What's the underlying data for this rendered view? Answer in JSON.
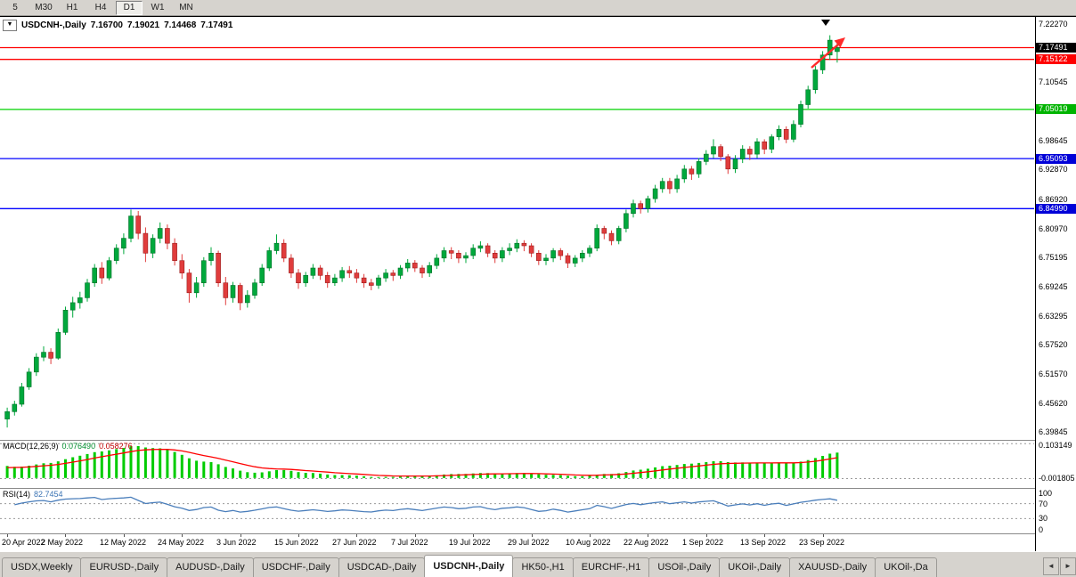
{
  "toolbar": {
    "timeframes": [
      "5",
      "M30",
      "H1",
      "H4",
      "D1",
      "W1",
      "MN"
    ],
    "active_timeframe": "D1"
  },
  "chart": {
    "symbol_title": "USDCNH-,Daily",
    "dropdown_icon": "▼",
    "ohlc": {
      "open": "7.16700",
      "high": "7.19021",
      "low": "7.14468",
      "close": "7.17491"
    }
  },
  "chart_data": {
    "type": "candlestick",
    "title": "USDCNH-,Daily",
    "symbol": "USDCNH-",
    "timeframe": "Daily",
    "current_bar": {
      "open": 7.167,
      "high": 7.19021,
      "low": 7.14468,
      "close": 7.17491
    },
    "ylim": [
      6.383,
      7.237
    ],
    "y_ticks": [
      7.2227,
      7.10545,
      6.98645,
      6.9287,
      6.8692,
      6.8097,
      6.75195,
      6.69245,
      6.63295,
      6.5752,
      6.5157,
      6.4562,
      6.39845
    ],
    "x_ticks": [
      {
        "index": 0,
        "label": "20 Apr 2022"
      },
      {
        "index": 8,
        "label": "2 May 2022"
      },
      {
        "index": 16,
        "label": "12 May 2022"
      },
      {
        "index": 24,
        "label": "24 May 2022"
      },
      {
        "index": 32,
        "label": "3 Jun 2022"
      },
      {
        "index": 40,
        "label": "15 Jun 2022"
      },
      {
        "index": 48,
        "label": "27 Jun 2022"
      },
      {
        "index": 56,
        "label": "7 Jul 2022"
      },
      {
        "index": 64,
        "label": "19 Jul 2022"
      },
      {
        "index": 72,
        "label": "29 Jul 2022"
      },
      {
        "index": 80,
        "label": "10 Aug 2022"
      },
      {
        "index": 88,
        "label": "22 Aug 2022"
      },
      {
        "index": 96,
        "label": "1 Sep 2022"
      },
      {
        "index": 104,
        "label": "13 Sep 2022"
      },
      {
        "index": 112,
        "label": "23 Sep 2022"
      }
    ],
    "hlines": [
      {
        "price": 7.17491,
        "color": "#ff0000"
      },
      {
        "price": 7.15122,
        "color": "#ff0000"
      },
      {
        "price": 7.05019,
        "color": "#00d200"
      },
      {
        "price": 6.95093,
        "color": "#0000ff"
      },
      {
        "price": 6.8499,
        "color": "#0000ff"
      }
    ],
    "price_tags": [
      {
        "price": 7.17491,
        "label": "7.17491",
        "bg": "#000000"
      },
      {
        "price": 7.15122,
        "label": "7.15122",
        "bg": "#ff0000"
      },
      {
        "price": 7.05019,
        "label": "7.05019",
        "bg": "#00b400"
      },
      {
        "price": 6.95093,
        "label": "6.95093",
        "bg": "#0000d8"
      },
      {
        "price": 6.8499,
        "label": "6.84990",
        "bg": "#0000d8"
      }
    ],
    "colors": {
      "up": "#00a83c",
      "down": "#e03c3c",
      "up_edge": "#007028",
      "down_edge": "#9c1c1c",
      "macd_hist": "#00cc00",
      "macd_signal": "#ff0000",
      "rsi_line": "#4a7ebb",
      "arrow": "#ff2a2a"
    },
    "macd": {
      "label": "MACD(12,26,9)",
      "params": [
        12,
        26,
        9
      ],
      "value_main": "0.076490",
      "value_signal": "0.058276",
      "scale_max": "0.103149",
      "scale_min": "-0.001805"
    },
    "rsi": {
      "label": "RSI(14)",
      "period": 14,
      "value": "82.7454",
      "levels": [
        100,
        70,
        30,
        0
      ],
      "level_lines": [
        70,
        30
      ]
    },
    "candles": [
      [
        6.425,
        6.448,
        6.408,
        6.44
      ],
      [
        6.44,
        6.462,
        6.432,
        6.455
      ],
      [
        6.455,
        6.498,
        6.45,
        6.49
      ],
      [
        6.49,
        6.528,
        6.484,
        6.52
      ],
      [
        6.52,
        6.558,
        6.512,
        6.55
      ],
      [
        6.55,
        6.572,
        6.542,
        6.56
      ],
      [
        6.56,
        6.568,
        6.536,
        6.548
      ],
      [
        6.548,
        6.608,
        6.545,
        6.6
      ],
      [
        6.6,
        6.652,
        6.595,
        6.645
      ],
      [
        6.645,
        6.672,
        6.63,
        6.66
      ],
      [
        6.66,
        6.682,
        6.648,
        6.67
      ],
      [
        6.67,
        6.708,
        6.662,
        6.7
      ],
      [
        6.7,
        6.738,
        6.692,
        6.73
      ],
      [
        6.73,
        6.742,
        6.698,
        6.71
      ],
      [
        6.71,
        6.752,
        6.705,
        6.745
      ],
      [
        6.745,
        6.778,
        6.738,
        6.77
      ],
      [
        6.77,
        6.8,
        6.758,
        6.79
      ],
      [
        6.79,
        6.848,
        6.782,
        6.835
      ],
      [
        6.835,
        6.845,
        6.788,
        6.8
      ],
      [
        6.8,
        6.812,
        6.742,
        6.76
      ],
      [
        6.76,
        6.798,
        6.75,
        6.79
      ],
      [
        6.79,
        6.822,
        6.78,
        6.81
      ],
      [
        6.81,
        6.818,
        6.768,
        6.78
      ],
      [
        6.78,
        6.79,
        6.735,
        6.745
      ],
      [
        6.745,
        6.758,
        6.708,
        6.72
      ],
      [
        6.72,
        6.728,
        6.66,
        6.68
      ],
      [
        6.68,
        6.712,
        6.67,
        6.7
      ],
      [
        6.7,
        6.752,
        6.692,
        6.745
      ],
      [
        6.745,
        6.772,
        6.735,
        6.76
      ],
      [
        6.76,
        6.765,
        6.692,
        6.7
      ],
      [
        6.7,
        6.712,
        6.655,
        6.67
      ],
      [
        6.67,
        6.702,
        6.66,
        6.695
      ],
      [
        6.695,
        6.7,
        6.645,
        6.66
      ],
      [
        6.66,
        6.685,
        6.65,
        6.675
      ],
      [
        6.675,
        6.708,
        6.668,
        6.7
      ],
      [
        6.7,
        6.738,
        6.694,
        6.73
      ],
      [
        6.73,
        6.772,
        6.724,
        6.765
      ],
      [
        6.765,
        6.798,
        6.758,
        6.78
      ],
      [
        6.78,
        6.788,
        6.742,
        6.75
      ],
      [
        6.75,
        6.758,
        6.71,
        6.72
      ],
      [
        6.72,
        6.728,
        6.688,
        6.7
      ],
      [
        6.7,
        6.722,
        6.692,
        6.715
      ],
      [
        6.715,
        6.738,
        6.708,
        6.73
      ],
      [
        6.73,
        6.736,
        6.706,
        6.715
      ],
      [
        6.715,
        6.722,
        6.69,
        6.7
      ],
      [
        6.7,
        6.718,
        6.694,
        6.71
      ],
      [
        6.71,
        6.732,
        6.702,
        6.725
      ],
      [
        6.725,
        6.734,
        6.71,
        6.72
      ],
      [
        6.72,
        6.728,
        6.7,
        6.71
      ],
      [
        6.71,
        6.718,
        6.69,
        6.7
      ],
      [
        6.7,
        6.708,
        6.685,
        6.695
      ],
      [
        6.695,
        6.716,
        6.688,
        6.71
      ],
      [
        6.71,
        6.728,
        6.702,
        6.72
      ],
      [
        6.72,
        6.726,
        6.704,
        6.715
      ],
      [
        6.715,
        6.736,
        6.708,
        6.73
      ],
      [
        6.73,
        6.748,
        6.722,
        6.74
      ],
      [
        6.74,
        6.746,
        6.722,
        6.73
      ],
      [
        6.73,
        6.736,
        6.71,
        6.72
      ],
      [
        6.72,
        6.742,
        6.712,
        6.735
      ],
      [
        6.735,
        6.758,
        6.728,
        6.75
      ],
      [
        6.75,
        6.772,
        6.742,
        6.765
      ],
      [
        6.765,
        6.772,
        6.748,
        6.76
      ],
      [
        6.76,
        6.766,
        6.74,
        6.75
      ],
      [
        6.75,
        6.762,
        6.74,
        6.755
      ],
      [
        6.755,
        6.778,
        6.748,
        6.77
      ],
      [
        6.77,
        6.784,
        6.762,
        6.775
      ],
      [
        6.775,
        6.78,
        6.752,
        6.76
      ],
      [
        6.76,
        6.766,
        6.74,
        6.75
      ],
      [
        6.75,
        6.772,
        6.742,
        6.765
      ],
      [
        6.765,
        6.78,
        6.756,
        6.77
      ],
      [
        6.77,
        6.788,
        6.762,
        6.78
      ],
      [
        6.78,
        6.786,
        6.764,
        6.775
      ],
      [
        6.775,
        6.78,
        6.752,
        6.76
      ],
      [
        6.76,
        6.766,
        6.736,
        6.745
      ],
      [
        6.745,
        6.758,
        6.736,
        6.75
      ],
      [
        6.75,
        6.77,
        6.742,
        6.765
      ],
      [
        6.765,
        6.77,
        6.746,
        6.755
      ],
      [
        6.755,
        6.76,
        6.73,
        6.74
      ],
      [
        6.74,
        6.756,
        6.732,
        6.75
      ],
      [
        6.75,
        6.766,
        6.742,
        6.76
      ],
      [
        6.76,
        6.776,
        6.752,
        6.77
      ],
      [
        6.77,
        6.818,
        6.764,
        6.81
      ],
      [
        6.81,
        6.815,
        6.788,
        6.8
      ],
      [
        6.8,
        6.806,
        6.776,
        6.785
      ],
      [
        6.785,
        6.815,
        6.778,
        6.81
      ],
      [
        6.81,
        6.848,
        6.802,
        6.84
      ],
      [
        6.84,
        6.868,
        6.832,
        6.86
      ],
      [
        6.86,
        6.866,
        6.84,
        6.85
      ],
      [
        6.85,
        6.876,
        6.842,
        6.87
      ],
      [
        6.87,
        6.898,
        6.862,
        6.89
      ],
      [
        6.89,
        6.912,
        6.882,
        6.905
      ],
      [
        6.905,
        6.912,
        6.88,
        6.89
      ],
      [
        6.89,
        6.918,
        6.882,
        6.91
      ],
      [
        6.91,
        6.938,
        6.902,
        6.93
      ],
      [
        6.93,
        6.936,
        6.908,
        6.92
      ],
      [
        6.92,
        6.952,
        6.912,
        6.945
      ],
      [
        6.945,
        6.968,
        6.938,
        6.96
      ],
      [
        6.96,
        6.99,
        6.952,
        6.975
      ],
      [
        6.975,
        6.98,
        6.946,
        6.955
      ],
      [
        6.955,
        6.96,
        6.92,
        6.93
      ],
      [
        6.93,
        6.958,
        6.922,
        6.95
      ],
      [
        6.95,
        6.978,
        6.942,
        6.97
      ],
      [
        6.97,
        6.976,
        6.948,
        6.96
      ],
      [
        6.96,
        6.992,
        6.952,
        6.985
      ],
      [
        6.985,
        6.99,
        6.96,
        6.97
      ],
      [
        6.97,
        7.0,
        6.962,
        6.995
      ],
      [
        6.995,
        7.018,
        6.988,
        7.01
      ],
      [
        7.01,
        7.016,
        6.982,
        6.99
      ],
      [
        6.99,
        7.028,
        6.984,
        7.02
      ],
      [
        7.02,
        7.068,
        7.014,
        7.06
      ],
      [
        7.06,
        7.098,
        7.052,
        7.09
      ],
      [
        7.09,
        7.138,
        7.082,
        7.13
      ],
      [
        7.13,
        7.168,
        7.122,
        7.16
      ],
      [
        7.16,
        7.2,
        7.15,
        7.19
      ],
      [
        7.167,
        7.19021,
        7.14468,
        7.17491
      ]
    ]
  },
  "tabs": {
    "items": [
      "USDX,Weekly",
      "EURUSD-,Daily",
      "AUDUSD-,Daily",
      "USDCHF-,Daily",
      "USDCAD-,Daily",
      "USDCNH-,Daily",
      "HK50-,H1",
      "EURCHF-,H1",
      "USOil-,Daily",
      "UKOil-,Daily",
      "XAUUSD-,Daily",
      "UKOil-,Da"
    ],
    "active_index": 5,
    "scroll_left_icon": "◄",
    "scroll_right_icon": "►"
  }
}
